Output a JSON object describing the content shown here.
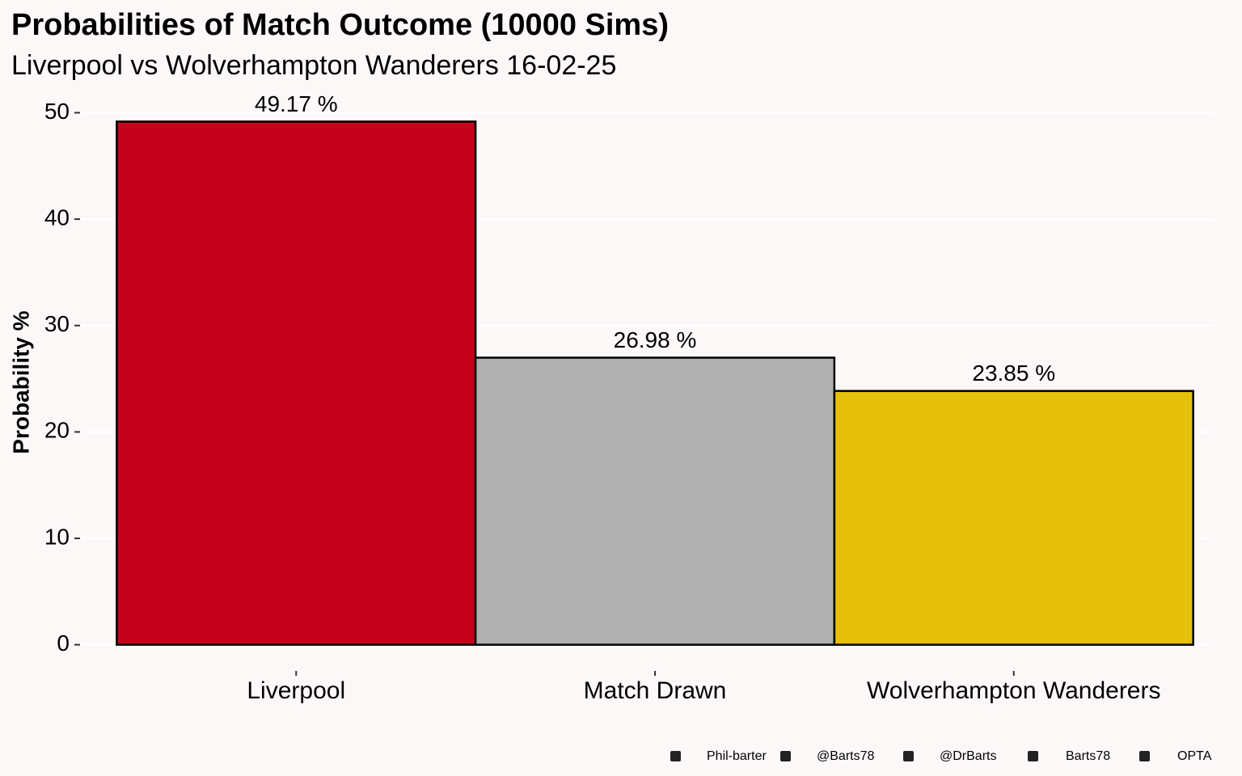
{
  "chart_data": {
    "type": "bar",
    "title": "Probabilities of Match Outcome (10000 Sims)",
    "subtitle": "Liverpool vs Wolverhampton Wanderers 16-02-25",
    "y_label": "Probability %",
    "categories": [
      "Liverpool",
      "Match Drawn",
      "Wolverhampton Wanderers"
    ],
    "values": [
      49.17,
      26.98,
      23.85
    ],
    "value_labels": [
      "49.17  %",
      "26.98  %",
      "23.85  %"
    ],
    "colors": [
      "#c4001a",
      "#b0b0b0",
      "#e6c10c"
    ],
    "ylim": [
      -2.46,
      51.63
    ],
    "yticks": [
      0,
      10,
      20,
      30,
      40,
      50
    ],
    "grid": true,
    "caption": [
      "Phil-barter",
      "@Barts78",
      "@DrBarts",
      "Barts78",
      "OPTA"
    ]
  }
}
